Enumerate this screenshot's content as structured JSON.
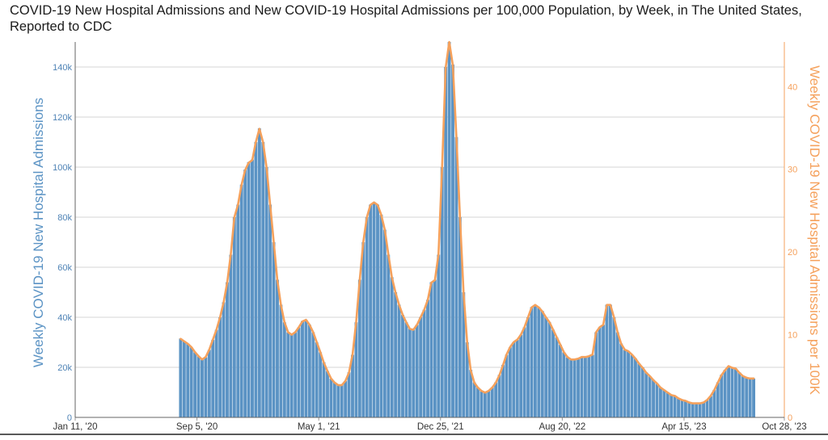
{
  "title": "COVID-19 New Hospital Admissions and New COVID-19 Hospital Admissions per 100,000 Population, by Week, in The United States, Reported to CDC",
  "chart_data": {
    "type": "bar",
    "title": "COVID-19 New Hospital Admissions and New COVID-19 Hospital Admissions per 100,000 Population, by Week, in The United States, Reported to CDC",
    "ylabel": "Weekly COVID-19 New Hospital Admissions",
    "y2label": "Weekly COVID-19 New Hospital Admissions per 100K",
    "ylim": [
      0,
      150000
    ],
    "y2lim": [
      0,
      45.4
    ],
    "yticks": [
      0,
      20000,
      40000,
      60000,
      80000,
      100000,
      120000,
      140000
    ],
    "ytick_labels": [
      "0",
      "20k",
      "40k",
      "60k",
      "80k",
      "100k",
      "120k",
      "140k"
    ],
    "y2ticks": [
      0,
      10,
      20,
      30,
      40
    ],
    "y2tick_labels": [
      "0",
      "10",
      "20",
      "30",
      "40"
    ],
    "xticks": [
      "2020-01-11",
      "2020-09-05",
      "2021-05-01",
      "2021-12-25",
      "2022-08-20",
      "2023-04-15",
      "2023-10-28"
    ],
    "xtick_labels": [
      "Jan 11, '20",
      "Sep 5, '20",
      "May 1, '21",
      "Dec 25, '21",
      "Aug 20, '22",
      "Apr 15, '23",
      "Oct 28, '23"
    ],
    "x_range": [
      "2020-01-11",
      "2023-10-28"
    ],
    "first_week": "2020-08-01",
    "week_step_days": 7,
    "grid": true,
    "bar_color": "#5b93c4",
    "line_color": "#f5a15c",
    "series": [
      {
        "name": "Weekly COVID-19 New Hospital Admissions",
        "values": [
          31500,
          30500,
          29500,
          28000,
          26000,
          24500,
          23000,
          24000,
          27000,
          31000,
          35000,
          40000,
          46000,
          54000,
          65000,
          80000,
          85000,
          93000,
          99000,
          102000,
          103000,
          110000,
          115500,
          110000,
          100000,
          85000,
          70000,
          55000,
          45000,
          38000,
          34000,
          33000,
          34000,
          36000,
          38500,
          39000,
          37000,
          34000,
          30000,
          26000,
          22000,
          18500,
          15500,
          14000,
          13000,
          13000,
          14500,
          18000,
          25000,
          38000,
          55000,
          70000,
          80000,
          85000,
          86000,
          85000,
          81000,
          75000,
          65000,
          56000,
          50000,
          45000,
          41000,
          38000,
          35500,
          35000,
          37000,
          40000,
          43000,
          47000,
          54000,
          55000,
          65000,
          100000,
          140000,
          150000,
          141000,
          112000,
          80000,
          50000,
          30000,
          19000,
          14000,
          12000,
          10500,
          10000,
          10500,
          12000,
          14000,
          17000,
          21000,
          25000,
          28000,
          30000,
          31000,
          33000,
          36000,
          40000,
          44000,
          45000,
          44000,
          42500,
          40000,
          38000,
          35000,
          32000,
          29000,
          26000,
          24000,
          23000,
          23000,
          23500,
          24000,
          24000,
          24500,
          25000,
          34000,
          36000,
          37000,
          45000,
          45000,
          40000,
          34000,
          29500,
          27000,
          26500,
          25000,
          23500,
          21500,
          20000,
          18000,
          16500,
          15000,
          13500,
          12000,
          11000,
          10000,
          9000,
          8500,
          7500,
          7000,
          6500,
          6000,
          5500,
          5500,
          5500,
          6000,
          7000,
          8500,
          11000,
          14000,
          17000,
          19000,
          20500,
          20000,
          19500,
          18000,
          16500,
          16000,
          15500,
          15500
        ]
      },
      {
        "name": "Weekly COVID-19 New Hospital Admissions per 100K",
        "values": [
          9.5,
          9.2,
          8.9,
          8.5,
          7.9,
          7.4,
          7.0,
          7.3,
          8.2,
          9.4,
          10.6,
          12.1,
          13.9,
          16.3,
          19.7,
          24.2,
          25.7,
          28.1,
          29.9,
          30.8,
          31.1,
          33.3,
          34.9,
          33.3,
          30.2,
          25.7,
          21.2,
          16.6,
          13.6,
          11.5,
          10.3,
          10.0,
          10.3,
          10.9,
          11.6,
          11.8,
          11.2,
          10.3,
          9.1,
          7.9,
          6.6,
          5.6,
          4.7,
          4.2,
          3.9,
          3.9,
          4.4,
          5.4,
          7.6,
          11.5,
          16.6,
          21.2,
          24.2,
          25.7,
          26.0,
          25.7,
          24.5,
          22.7,
          19.7,
          16.9,
          15.1,
          13.6,
          12.4,
          11.5,
          10.7,
          10.6,
          11.2,
          12.1,
          13.0,
          14.2,
          16.3,
          16.6,
          19.7,
          30.2,
          42.3,
          45.4,
          42.6,
          33.9,
          24.2,
          15.1,
          9.1,
          5.7,
          4.2,
          3.6,
          3.2,
          3.0,
          3.2,
          3.6,
          4.2,
          5.1,
          6.3,
          7.6,
          8.5,
          9.1,
          9.4,
          10.0,
          10.9,
          12.1,
          13.3,
          13.6,
          13.3,
          12.8,
          12.1,
          11.5,
          10.6,
          9.7,
          8.8,
          7.9,
          7.3,
          7.0,
          7.0,
          7.1,
          7.3,
          7.3,
          7.4,
          7.6,
          10.3,
          10.9,
          11.2,
          13.6,
          13.6,
          12.1,
          10.3,
          8.9,
          8.2,
          8.0,
          7.6,
          7.1,
          6.5,
          6.0,
          5.4,
          5.0,
          4.5,
          4.1,
          3.6,
          3.3,
          3.0,
          2.7,
          2.6,
          2.3,
          2.1,
          2.0,
          1.8,
          1.7,
          1.7,
          1.7,
          1.8,
          2.1,
          2.6,
          3.3,
          4.2,
          5.1,
          5.7,
          6.2,
          6.0,
          5.9,
          5.4,
          5.0,
          4.8,
          4.7,
          4.7
        ]
      }
    ]
  }
}
